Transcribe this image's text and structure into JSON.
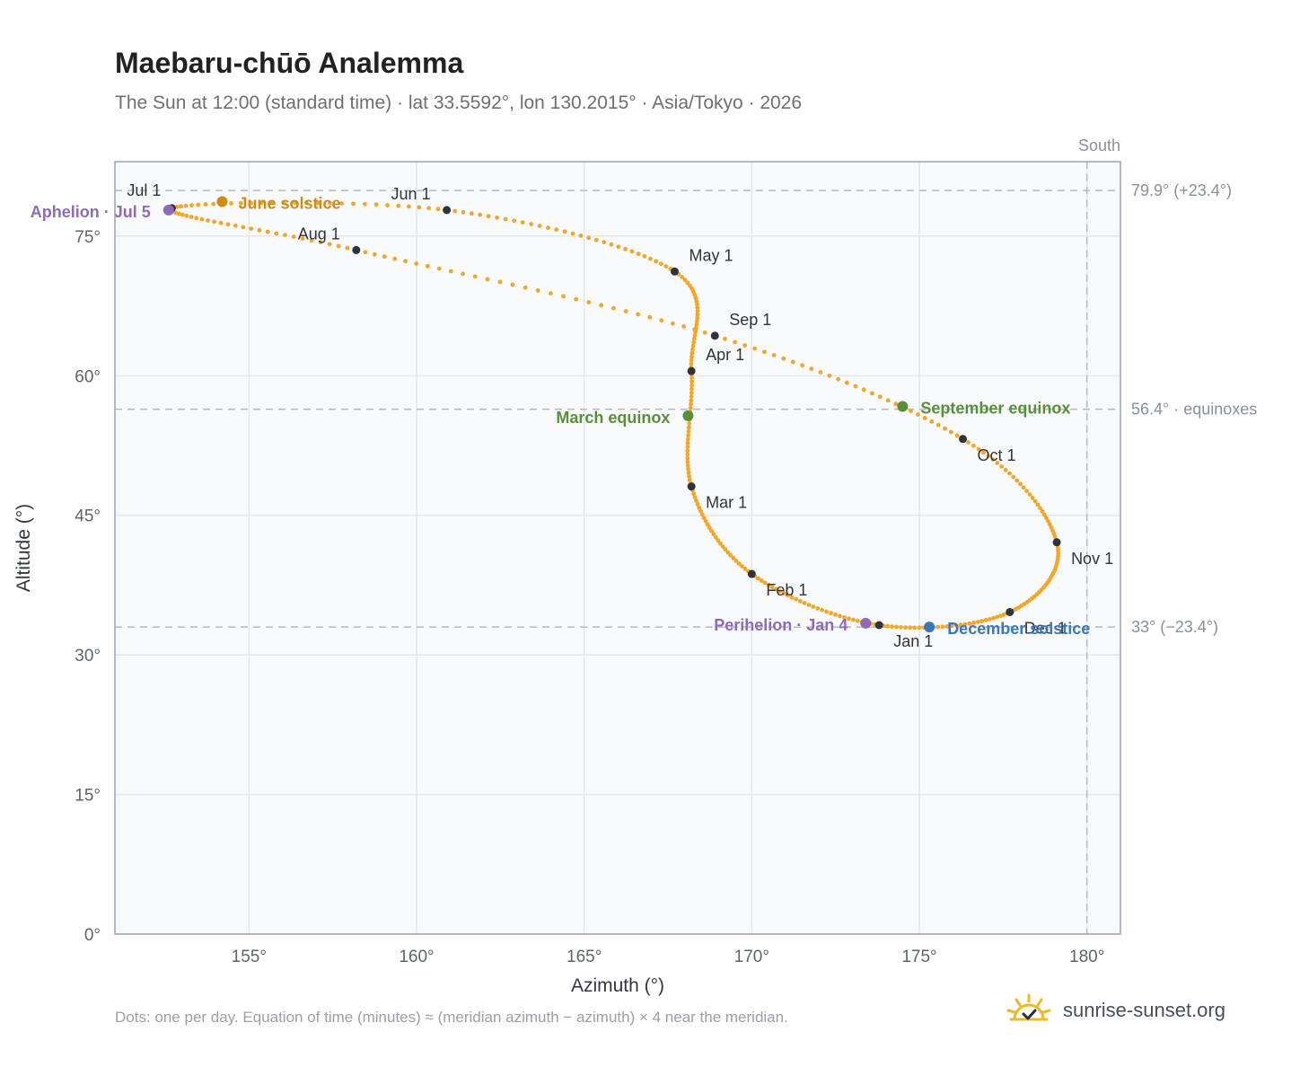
{
  "title": "Maebaru-chūō Analemma",
  "subtitle": "The Sun at 12:00 (standard time) · lat 33.5592°, lon 130.2015° · Asia/Tokyo · 2026",
  "footnote": "Dots: one per day. Equation of time (minutes) ≈ (meridian azimuth − azimuth) × 4 near the meridian.",
  "brand": {
    "name": "sunrise-sunset.org",
    "logo_icon": "sun-check-icon"
  },
  "colors": {
    "curve": "#f4a62a",
    "month_dot": "#2f343a",
    "aphelion": "#8e6bb8",
    "perihelion": "#8e6bb8",
    "june_solstice": "#d18a12",
    "equinox": "#5a8f3a",
    "december_solstice": "#3b78b8",
    "grid": "#e4e8ec",
    "plot_bg": "#f8fafc",
    "frame": "#9aa3ae"
  },
  "chart_data": {
    "type": "scatter",
    "xlabel": "Azimuth (°)",
    "ylabel": "Altitude (°)",
    "xlim": [
      151,
      181
    ],
    "ylim": [
      0,
      83
    ],
    "x_ticks": [
      155,
      160,
      165,
      170,
      175,
      180
    ],
    "y_ticks": [
      0,
      15,
      30,
      45,
      60,
      75
    ],
    "x_tick_labels": [
      "155°",
      "160°",
      "165°",
      "170°",
      "175°",
      "180°"
    ],
    "y_tick_labels": [
      "0°",
      "15°",
      "30°",
      "45°",
      "60°",
      "75°"
    ],
    "grid": true,
    "reference_lines": [
      {
        "orientation": "horizontal",
        "value": 79.9,
        "label": "79.9° (+23.4°)"
      },
      {
        "orientation": "horizontal",
        "value": 56.4,
        "label": "56.4° · equinoxes"
      },
      {
        "orientation": "horizontal",
        "value": 33.0,
        "label": "33° (−23.4°)"
      },
      {
        "orientation": "vertical",
        "value": 180,
        "label": "South"
      }
    ],
    "months": [
      {
        "label": "Jan 1",
        "az": 173.8,
        "alt": 33.2
      },
      {
        "label": "Feb 1",
        "az": 170.0,
        "alt": 38.7
      },
      {
        "label": "Mar 1",
        "az": 168.2,
        "alt": 48.1
      },
      {
        "label": "Apr 1",
        "az": 168.2,
        "alt": 60.5
      },
      {
        "label": "May 1",
        "az": 167.7,
        "alt": 71.2
      },
      {
        "label": "Jun 1",
        "az": 160.9,
        "alt": 77.8
      },
      {
        "label": "Jul 1",
        "az": 152.7,
        "alt": 78.0
      },
      {
        "label": "Aug 1",
        "az": 158.2,
        "alt": 73.5
      },
      {
        "label": "Sep 1",
        "az": 168.9,
        "alt": 64.3
      },
      {
        "label": "Oct 1",
        "az": 176.3,
        "alt": 53.2
      },
      {
        "label": "Nov 1",
        "az": 179.1,
        "alt": 42.1
      },
      {
        "label": "Dec 1",
        "az": 177.7,
        "alt": 34.6
      }
    ],
    "events": [
      {
        "label": "Aphelion · Jul 5",
        "az": 152.6,
        "alt": 77.8,
        "color_key": "aphelion"
      },
      {
        "label": "June solstice",
        "az": 154.2,
        "alt": 78.7,
        "color_key": "june_solstice"
      },
      {
        "label": "March equinox",
        "az": 168.1,
        "alt": 55.7,
        "color_key": "equinox"
      },
      {
        "label": "September equinox",
        "az": 174.5,
        "alt": 56.7,
        "color_key": "equinox"
      },
      {
        "label": "Perihelion · Jan 4",
        "az": 173.4,
        "alt": 33.4,
        "color_key": "perihelion"
      },
      {
        "label": "December solstice",
        "az": 175.3,
        "alt": 33.0,
        "color_key": "december_solstice"
      }
    ]
  }
}
